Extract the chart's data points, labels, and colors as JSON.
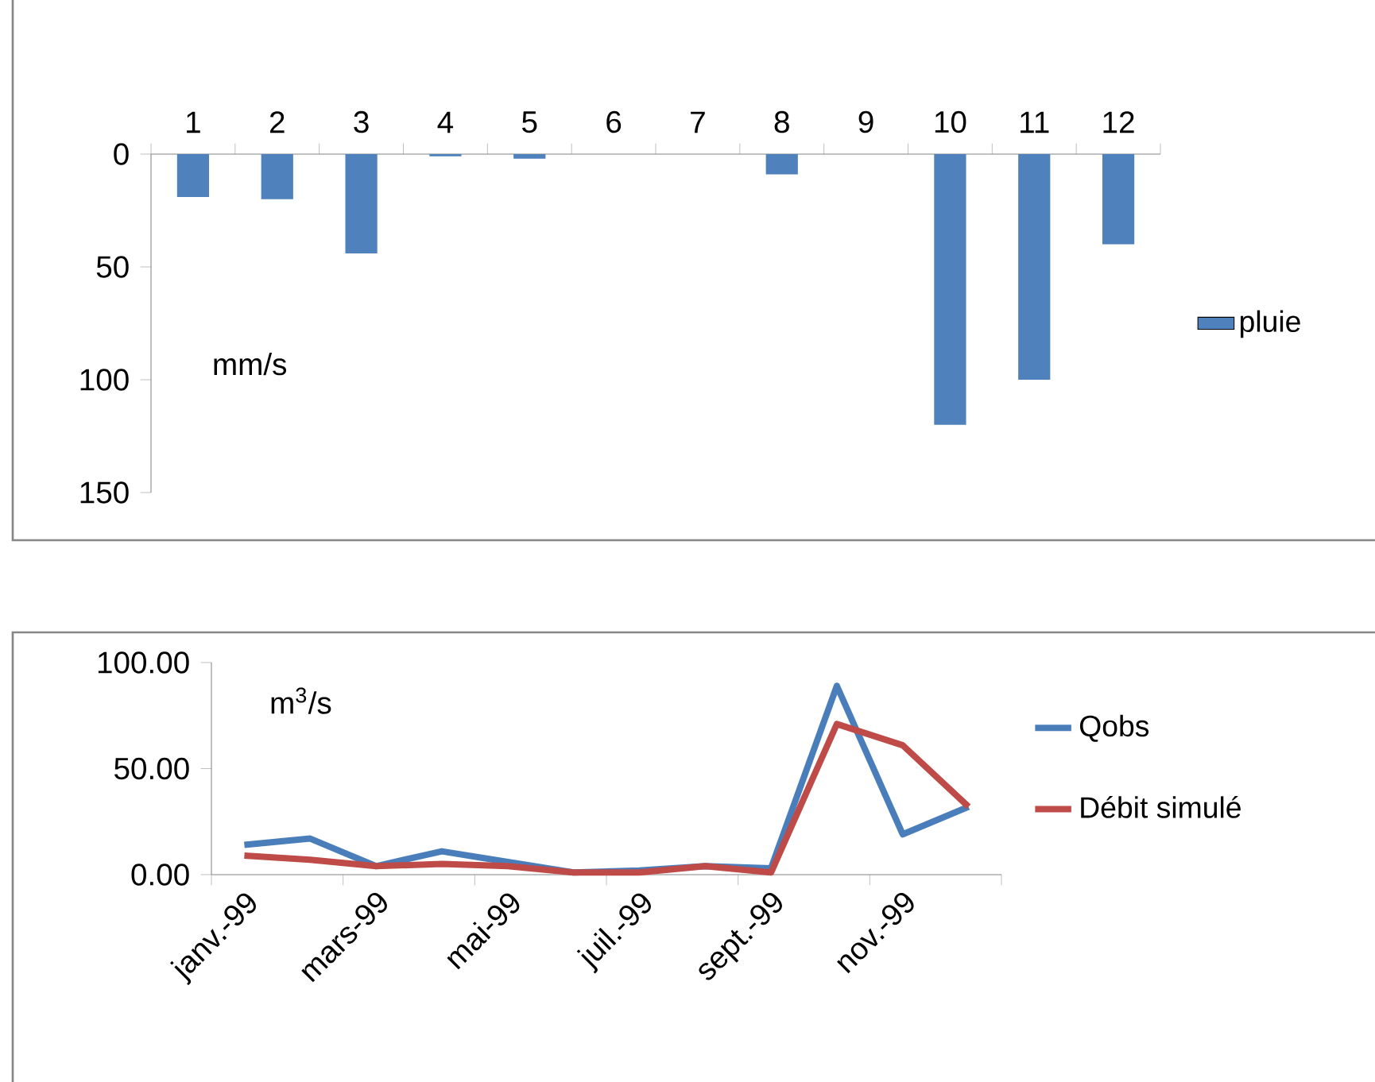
{
  "chart_data": [
    {
      "type": "bar",
      "categories": [
        "1",
        "2",
        "3",
        "4",
        "5",
        "6",
        "7",
        "8",
        "9",
        "10",
        "11",
        "12"
      ],
      "series": [
        {
          "name": "pluie",
          "color": "#4f81bd",
          "values": [
            19,
            20,
            44,
            1,
            2,
            0,
            0,
            9,
            0,
            120,
            100,
            40
          ]
        }
      ],
      "ylim": [
        150,
        0
      ],
      "yticks": [
        0,
        50,
        100,
        150
      ],
      "annotations": [
        "mm/s"
      ],
      "legend": "right"
    },
    {
      "type": "line",
      "categories": [
        "janv.-99",
        null,
        "mars-99",
        null,
        "mai-99",
        null,
        "juil.-99",
        null,
        "sept.-99",
        null,
        "nov.-99",
        null
      ],
      "series": [
        {
          "name": "Qobs",
          "color": "#4a7ebb",
          "values": [
            14,
            17,
            4,
            11,
            6,
            1,
            2,
            4,
            3,
            89,
            19,
            32
          ]
        },
        {
          "name": "Débit simulé",
          "color": "#be4b48",
          "values": [
            9,
            7,
            4,
            5,
            4,
            1,
            1,
            4,
            1,
            71,
            61,
            32
          ]
        }
      ],
      "ylim": [
        0,
        100
      ],
      "yticks": [
        {
          "value": 0,
          "label": "0.00"
        },
        {
          "value": 50,
          "label": "50.00"
        },
        {
          "value": 100,
          "label": "100.00"
        }
      ],
      "annotations": [
        "m$^{3}$/s"
      ],
      "legend": "right"
    }
  ]
}
